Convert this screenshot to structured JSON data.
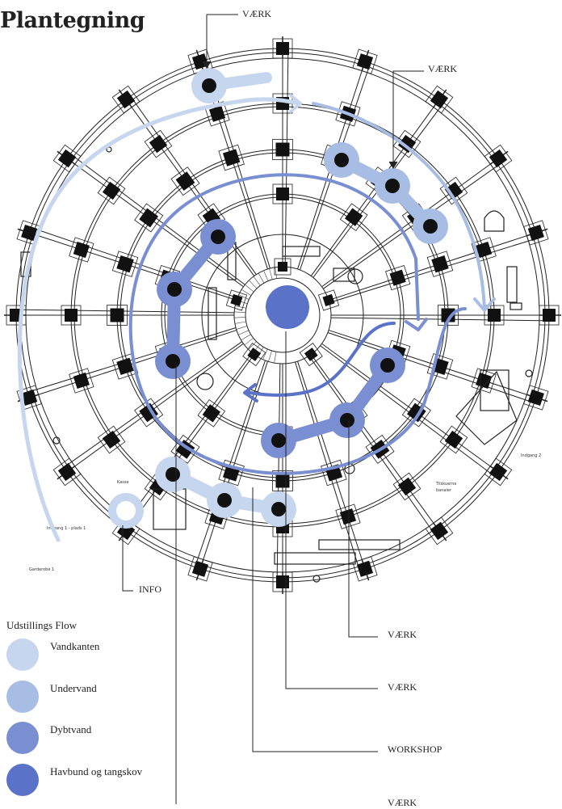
{
  "title": "Plantegning",
  "callouts": {
    "vaerk_top": "VÆRK",
    "vaerk_upper_right": "VÆRK",
    "info": "INFO",
    "vaerk_right_1": "VÆRK",
    "vaerk_right_2": "VÆRK",
    "workshop": "WORKSHOP",
    "vaerk_bottom": "VÆRK"
  },
  "legend": {
    "title": "Udstillings Flow",
    "items": [
      {
        "label": "Vandkanten",
        "color": "#c6d6ee"
      },
      {
        "label": "Undervand",
        "color": "#a8bde4"
      },
      {
        "label": "Dybtvand",
        "color": "#7a8fd2"
      },
      {
        "label": "Havbund og tangskov",
        "color": "#5a72c8"
      }
    ]
  },
  "colors": {
    "zone_outer": "#c6d6ee",
    "zone_middle": "#a8bde4",
    "zone_inner": "#7a8fd2",
    "center": "#5a72c8",
    "pillar": "#111111",
    "line": "#222222"
  },
  "plan_notes": [
    "Indgang 1 - plads 1",
    "Indgang 2",
    "Tilskuerne banaler",
    "Garderobe 1",
    "Kasse"
  ]
}
